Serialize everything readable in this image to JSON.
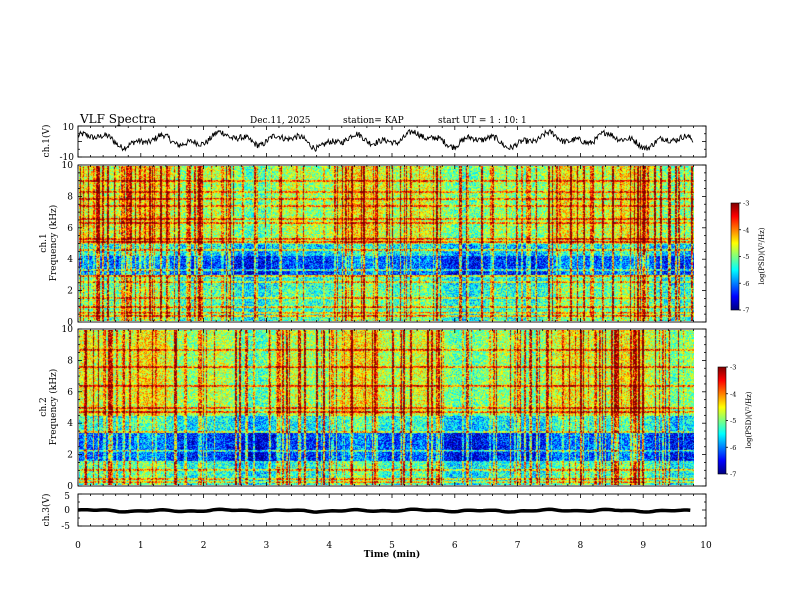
{
  "header": {
    "title": "VLF Spectra",
    "date": "Dec.11, 2025",
    "station": "station= KAP",
    "start": "start  UT =   1 : 10: 1"
  },
  "chart_data": [
    {
      "type": "line",
      "name": "ch1-waveform",
      "ylabel": "ch.1(V)",
      "ylim": [
        -10,
        10
      ],
      "yticks": [
        10,
        -10
      ],
      "xlim": [
        0,
        10
      ],
      "x_extent": [
        0,
        9.8
      ],
      "series": [
        {
          "name": "ch.1",
          "baseline": 1,
          "amplitude": 3
        }
      ]
    },
    {
      "type": "heatmap",
      "name": "ch1-spectrogram",
      "ylabel": "ch.1\nFrequency (kHz)",
      "ylim": [
        0,
        10
      ],
      "yticks": [
        0,
        2,
        4,
        6,
        8,
        10
      ],
      "xlim": [
        0,
        10
      ],
      "x_extent": [
        0,
        9.8
      ],
      "colorbar": {
        "label": "log(PSD)(V²/Hz)",
        "ticks": [
          -3,
          -4,
          -5,
          -6,
          -7
        ],
        "range": [
          -7,
          -3
        ]
      }
    },
    {
      "type": "heatmap",
      "name": "ch2-spectrogram",
      "ylabel": "ch.2\nFrequency (kHz)",
      "ylim": [
        0,
        10
      ],
      "yticks": [
        0,
        2,
        4,
        6,
        8,
        10
      ],
      "xlim": [
        0,
        10
      ],
      "x_extent": [
        0,
        9.8
      ],
      "colorbar": {
        "label": "log(PSD)(V²/Hz)",
        "ticks": [
          -3,
          -4,
          -5,
          -6,
          -7
        ],
        "range": [
          -7,
          -3
        ]
      }
    },
    {
      "type": "line",
      "name": "ch3-waveform",
      "ylabel": "ch.3(V)",
      "ylim": [
        -5,
        5
      ],
      "yticks": [
        5,
        0,
        -5
      ],
      "xlim": [
        0,
        10
      ],
      "x_extent": [
        0,
        9.8
      ],
      "series": [
        {
          "name": "ch.3",
          "baseline": -0.2,
          "amplitude": 0.25
        }
      ]
    }
  ],
  "xaxis": {
    "label": "Time (min)",
    "ticks": [
      0,
      1,
      2,
      3,
      4,
      5,
      6,
      7,
      8,
      9,
      10
    ]
  },
  "colors": {
    "colormap": [
      "#00007f",
      "#0000ff",
      "#007fff",
      "#00ffff",
      "#7fff7f",
      "#ffff00",
      "#ff7f00",
      "#ff0000",
      "#7f0000"
    ]
  }
}
